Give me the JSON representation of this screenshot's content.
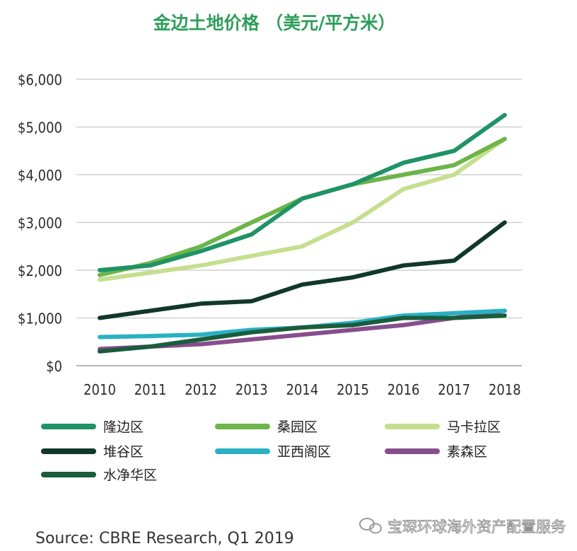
{
  "chart_data": {
    "type": "line",
    "title": "金边土地价格 （美元/平方米）",
    "title_color": "#2e9e5b",
    "x": [
      "2010",
      "2011",
      "2012",
      "2013",
      "2014",
      "2015",
      "2016",
      "2017",
      "2018"
    ],
    "ylim": [
      0,
      6000
    ],
    "yticks": [
      0,
      1000,
      2000,
      3000,
      4000,
      5000,
      6000
    ],
    "ytick_labels": [
      "$0",
      "$1,000",
      "$2,000",
      "$3,000",
      "$4,000",
      "$5,000",
      "$6,000"
    ],
    "grid": true,
    "legend_placement": "bottom",
    "series": [
      {
        "name": "隆边区",
        "color": "#1f9366",
        "values": [
          2000,
          2100,
          2400,
          2750,
          3500,
          3800,
          4250,
          4500,
          5250
        ]
      },
      {
        "name": "桑园区",
        "color": "#6cb548",
        "values": [
          1900,
          2150,
          2500,
          3000,
          3500,
          3800,
          4000,
          4200,
          4750
        ]
      },
      {
        "name": "马卡拉区",
        "color": "#c5df8f",
        "values": [
          1800,
          1950,
          2100,
          2300,
          2500,
          3000,
          3700,
          4000,
          4750
        ]
      },
      {
        "name": "堆谷区",
        "color": "#10372b",
        "values": [
          1000,
          1150,
          1300,
          1350,
          1700,
          1850,
          2100,
          2200,
          3000
        ]
      },
      {
        "name": "亚西阁区",
        "color": "#2ab0c4",
        "values": [
          600,
          620,
          650,
          750,
          800,
          900,
          1050,
          1100,
          1150
        ]
      },
      {
        "name": "素森区",
        "color": "#874e8e",
        "values": [
          350,
          400,
          450,
          550,
          650,
          750,
          850,
          1000,
          1150
        ]
      },
      {
        "name": "水净华区",
        "color": "#1a5c3b",
        "values": [
          300,
          400,
          550,
          700,
          800,
          850,
          1000,
          1000,
          1050
        ]
      }
    ]
  },
  "source": "Source: CBRE Research,  Q1 2019",
  "watermark": "宝琛环球海外资产配置服务"
}
